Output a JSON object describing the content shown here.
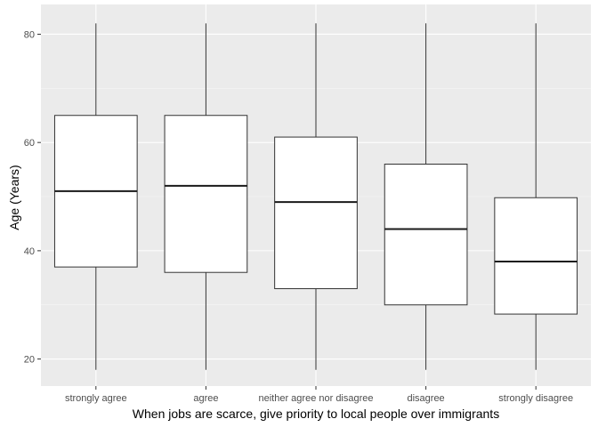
{
  "chart_data": {
    "type": "boxplot",
    "title": "",
    "xlabel": "When jobs are scarce, give priority to local people over immigrants",
    "ylabel": "Age (Years)",
    "ylim": [
      15,
      85.5
    ],
    "yticks": [
      20,
      40,
      60,
      80
    ],
    "categories": [
      "strongly agree",
      "agree",
      "neither agree nor disagree",
      "disagree",
      "strongly disagree"
    ],
    "boxes": [
      {
        "category": "strongly agree",
        "min": 18,
        "q1": 37,
        "median": 51,
        "q3": 65,
        "max": 82
      },
      {
        "category": "agree",
        "min": 18,
        "q1": 36,
        "median": 52,
        "q3": 65,
        "max": 82
      },
      {
        "category": "neither agree nor disagree",
        "min": 18,
        "q1": 33,
        "median": 49,
        "q3": 61,
        "max": 82
      },
      {
        "category": "disagree",
        "min": 18,
        "q1": 30,
        "median": 44,
        "q3": 56,
        "max": 82
      },
      {
        "category": "strongly disagree",
        "min": 18,
        "q1": 28.3,
        "median": 38,
        "q3": 49.8,
        "max": 82
      }
    ],
    "grid": true,
    "colors": {
      "panel": "#ebebeb",
      "grid_major": "#ffffff",
      "grid_minor": "#f5f5f5",
      "box_fill": "#ffffff",
      "box_stroke": "#333333",
      "median": "#1a1a1a"
    }
  }
}
